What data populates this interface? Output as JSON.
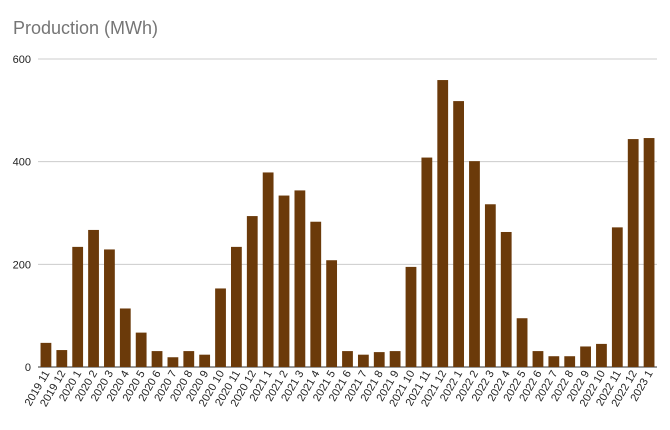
{
  "chart_data": {
    "type": "bar",
    "title": "Production (MWh)",
    "xlabel": "",
    "ylabel": "",
    "ylim": [
      0,
      600
    ],
    "yticks": [
      0,
      200,
      400,
      600
    ],
    "grid": true,
    "legend": "none",
    "bar_color": "#6b3a0a",
    "categories": [
      "2019 11",
      "2019 12",
      "2020 1",
      "2020 2",
      "2020 3",
      "2020 4",
      "2020 5",
      "2020 6",
      "2020 7",
      "2020 8",
      "2020 9",
      "2020 10",
      "2020 11",
      "2020 12",
      "2021 1",
      "2021 2",
      "2021 3",
      "2021 4",
      "2021 5",
      "2021 6",
      "2021 7",
      "2021 8",
      "2021 9",
      "2021 10",
      "2021 11",
      "2021 12",
      "2022 1",
      "2022 2",
      "2022 3",
      "2022 4",
      "2022 5",
      "2022 6",
      "2022 7",
      "2022 8",
      "2022 9",
      "2022 10",
      "2022 11",
      "2022 12",
      "2023 1"
    ],
    "values": [
      47,
      33,
      234,
      267,
      229,
      114,
      67,
      31,
      19,
      31,
      24,
      153,
      234,
      294,
      379,
      334,
      344,
      283,
      208,
      31,
      24,
      29,
      31,
      195,
      408,
      559,
      518,
      401,
      317,
      263,
      95,
      31,
      21,
      21,
      40,
      45,
      272,
      444,
      446
    ]
  }
}
